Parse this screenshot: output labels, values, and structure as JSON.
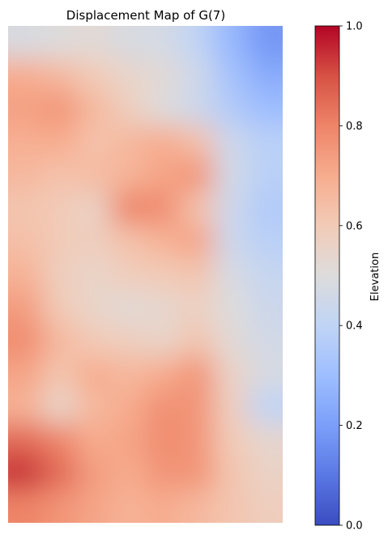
{
  "chart_data": {
    "type": "heatmap",
    "title": "Displacement Map of G(7)",
    "colormap": "coolwarm",
    "colorbar": {
      "label": "Elevation",
      "range": [
        0,
        1
      ],
      "ticks": [
        0.0,
        0.2,
        0.4,
        0.6,
        0.8,
        1.0
      ],
      "tick_labels": [
        "0.0",
        "0.2",
        "0.4",
        "0.6",
        "0.8",
        "1.0"
      ]
    },
    "grid_rows": 15,
    "grid_cols": 8,
    "values": [
      [
        0.48,
        0.5,
        0.52,
        0.48,
        0.47,
        0.4,
        0.28,
        0.18
      ],
      [
        0.7,
        0.66,
        0.6,
        0.55,
        0.52,
        0.45,
        0.32,
        0.24
      ],
      [
        0.73,
        0.76,
        0.66,
        0.58,
        0.5,
        0.44,
        0.36,
        0.3
      ],
      [
        0.69,
        0.7,
        0.63,
        0.66,
        0.7,
        0.64,
        0.44,
        0.38
      ],
      [
        0.66,
        0.63,
        0.65,
        0.67,
        0.72,
        0.76,
        0.46,
        0.38
      ],
      [
        0.62,
        0.6,
        0.56,
        0.8,
        0.78,
        0.63,
        0.44,
        0.36
      ],
      [
        0.64,
        0.6,
        0.58,
        0.63,
        0.68,
        0.72,
        0.44,
        0.38
      ],
      [
        0.68,
        0.58,
        0.55,
        0.59,
        0.6,
        0.62,
        0.48,
        0.42
      ],
      [
        0.74,
        0.6,
        0.55,
        0.52,
        0.54,
        0.57,
        0.5,
        0.44
      ],
      [
        0.78,
        0.66,
        0.6,
        0.58,
        0.55,
        0.62,
        0.52,
        0.46
      ],
      [
        0.72,
        0.62,
        0.7,
        0.66,
        0.7,
        0.76,
        0.56,
        0.48
      ],
      [
        0.68,
        0.55,
        0.66,
        0.7,
        0.77,
        0.76,
        0.58,
        0.4
      ],
      [
        0.85,
        0.8,
        0.7,
        0.72,
        0.78,
        0.76,
        0.6,
        0.54
      ],
      [
        0.94,
        0.85,
        0.74,
        0.7,
        0.76,
        0.76,
        0.62,
        0.56
      ],
      [
        0.8,
        0.76,
        0.72,
        0.68,
        0.7,
        0.66,
        0.62,
        0.58
      ]
    ]
  }
}
